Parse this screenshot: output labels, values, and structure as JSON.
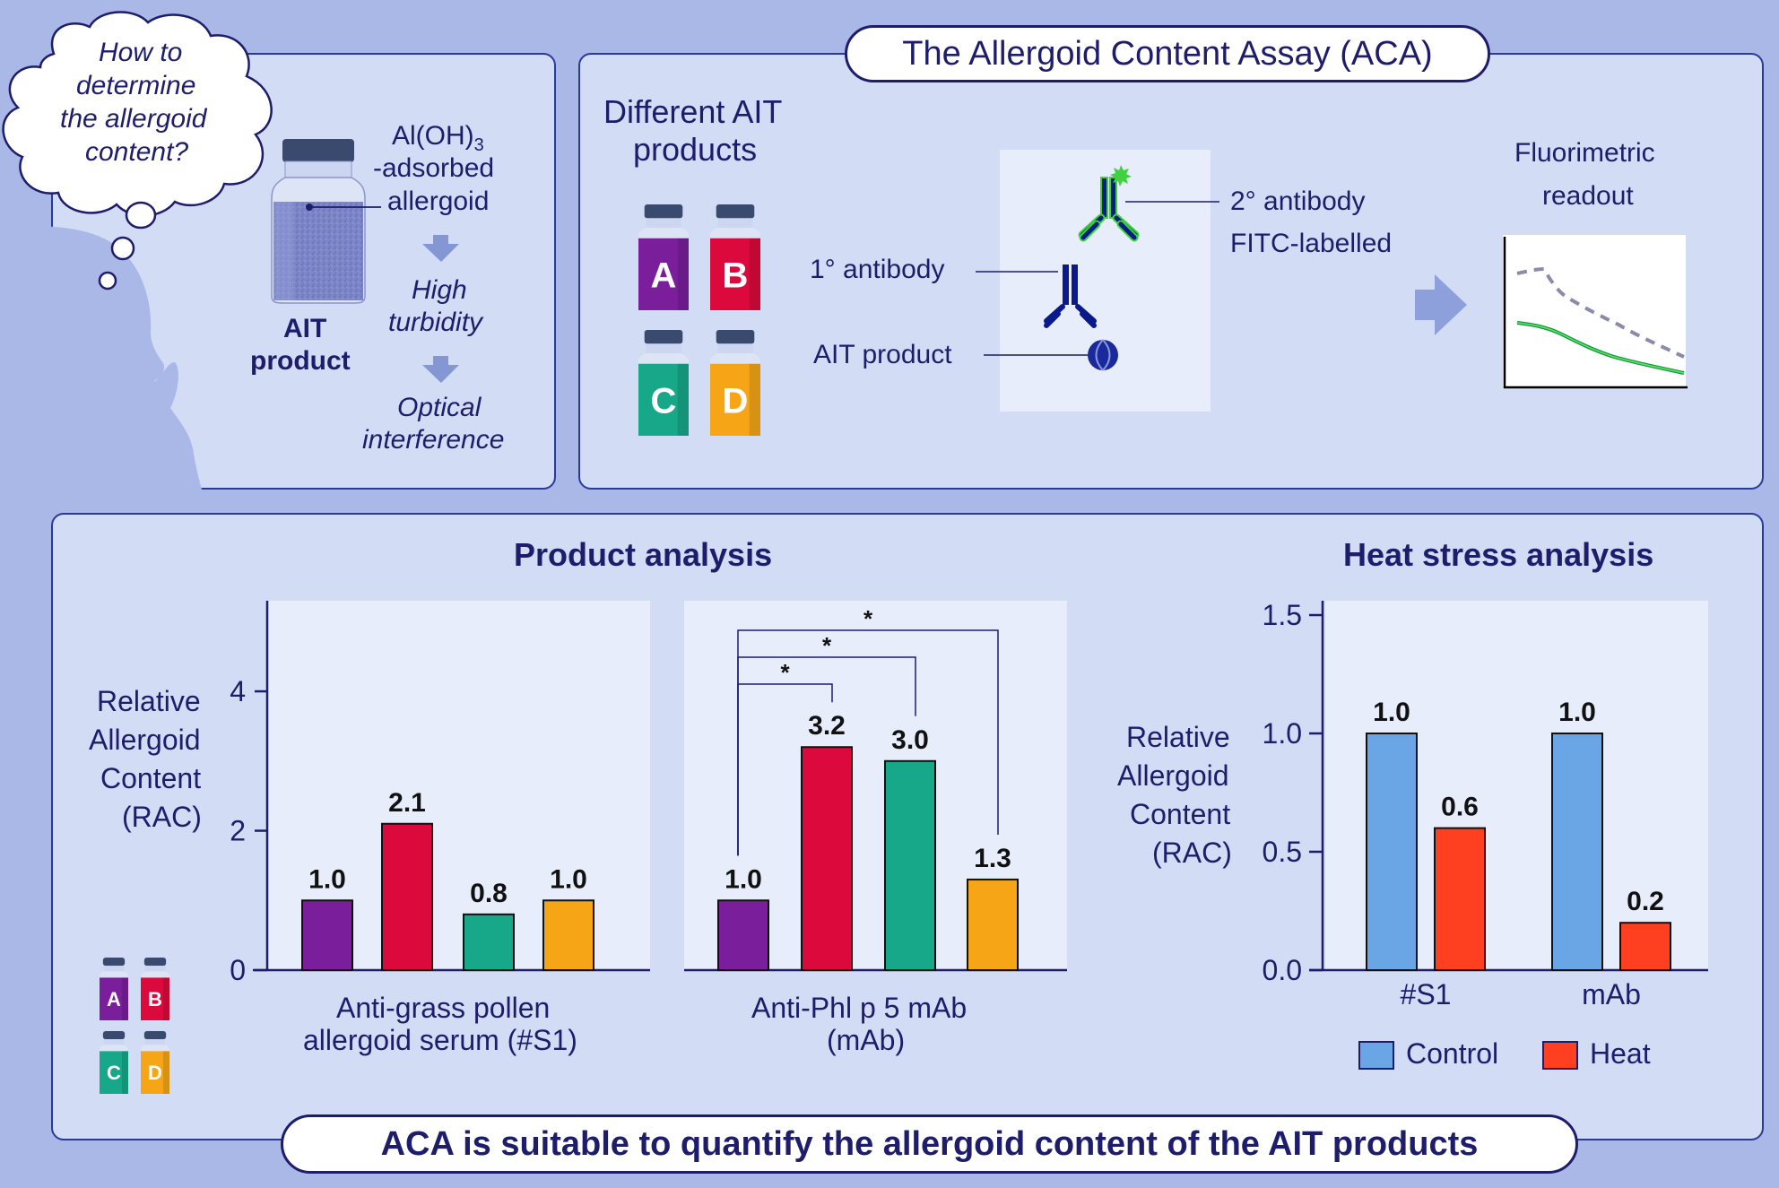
{
  "question": {
    "line1": "How to",
    "line2": "determine",
    "line3": "the allergoid",
    "line4": "content?"
  },
  "product_panel": {
    "adsorbed_line1": "Al(OH)",
    "adsorbed_sub": "3",
    "adsorbed_line2": "-adsorbed",
    "adsorbed_line3": "allergoid",
    "product_label_1": "AIT",
    "product_label_2": "product",
    "step1_line1": "High",
    "step1_line2": "turbidity",
    "step2_line1": "Optical",
    "step2_line2": "interference"
  },
  "assay_panel": {
    "title": "The Allergoid Content Assay (ACA)",
    "products_title_1": "Different AIT",
    "products_title_2": "products",
    "vials": [
      "A",
      "B",
      "C",
      "D"
    ],
    "primary_antibody": "1° antibody",
    "secondary_antibody_1": "2° antibody",
    "secondary_antibody_2": "FITC-labelled",
    "ait_product": "AIT product",
    "readout_1": "Fluorimetric",
    "readout_2": "readout"
  },
  "product_analysis": {
    "title": "Product analysis",
    "ylabel_1": "Relative",
    "ylabel_2": "Allergoid",
    "ylabel_3": "Content",
    "ylabel_4": "(RAC)",
    "chart1_xlabel_1": "Anti-grass pollen",
    "chart1_xlabel_2": "allergoid serum (#S1)",
    "chart2_xlabel_1": "Anti-Phl p 5 mAb",
    "chart2_xlabel_2": "(mAb)",
    "legend_vials": [
      "A",
      "B",
      "C",
      "D"
    ]
  },
  "heat_analysis": {
    "title": "Heat stress analysis",
    "ylabel_1": "Relative",
    "ylabel_2": "Allergoid",
    "ylabel_3": "Content",
    "ylabel_4": "(RAC)",
    "legend_control": "Control",
    "legend_heat": "Heat"
  },
  "conclusion": "ACA is suitable to quantify the allergoid content of the AIT products",
  "colors": {
    "A": "#7a1e9c",
    "B": "#dc0a3c",
    "C": "#16a889",
    "D": "#f5a516",
    "control": "#6aa6e6",
    "heat": "#ff4020",
    "navy": "#1d1d6b"
  },
  "chart_data": [
    {
      "type": "bar",
      "categories": [
        "A",
        "B",
        "C",
        "D"
      ],
      "values": [
        1.0,
        2.1,
        0.8,
        1.0
      ],
      "value_labels": [
        "1.0",
        "2.1",
        "0.8",
        "1.0"
      ],
      "xlabel": "Anti-grass pollen allergoid serum (#S1)",
      "ylabel": "Relative Allergoid Content (RAC)",
      "ylim": [
        0,
        5.3
      ],
      "yticks": [
        0,
        2,
        4
      ],
      "ytick_labels": [
        "0",
        "2",
        "4"
      ]
    },
    {
      "type": "bar",
      "categories": [
        "A",
        "B",
        "C",
        "D"
      ],
      "values": [
        1.0,
        3.2,
        3.0,
        1.3
      ],
      "value_labels": [
        "1.0",
        "3.2",
        "3.0",
        "1.3"
      ],
      "xlabel": "Anti-Phl p 5 mAb (mAb)",
      "ylim": [
        0,
        5.3
      ],
      "significance": [
        {
          "from": "A",
          "to": "B",
          "label": "*"
        },
        {
          "from": "A",
          "to": "C",
          "label": "*"
        },
        {
          "from": "A",
          "to": "D",
          "label": "*"
        }
      ]
    },
    {
      "type": "bar",
      "categories": [
        "#S1",
        "mAb"
      ],
      "series": [
        {
          "name": "Control",
          "values": [
            1.0,
            1.0
          ],
          "value_labels": [
            "1.0",
            "1.0"
          ]
        },
        {
          "name": "Heat",
          "values": [
            0.6,
            0.2
          ],
          "value_labels": [
            "0.6",
            "0.2"
          ]
        }
      ],
      "ylabel": "Relative Allergoid Content (RAC)",
      "ylim": [
        0,
        1.5
      ],
      "yticks": [
        0,
        0.5,
        1.0,
        1.5
      ],
      "ytick_labels": [
        "0.0",
        "0.5",
        "1.0",
        "1.5"
      ]
    }
  ]
}
